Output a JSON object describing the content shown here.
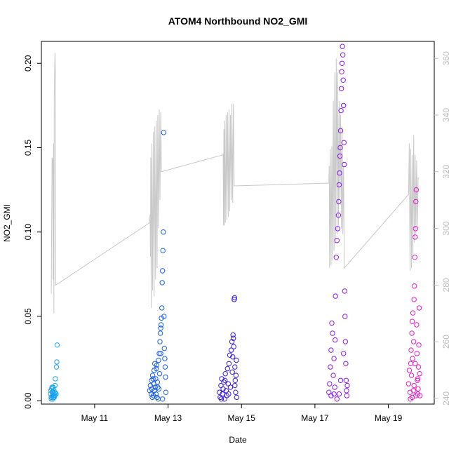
{
  "chart_data": {
    "type": "scatter",
    "title": "ATOM4 Northbound NO2_GMI",
    "xlabel": "Date",
    "ylabel": "NO2_GMI",
    "xlim": [
      9.55,
      20.25
    ],
    "ylim": [
      -0.002,
      0.213
    ],
    "y2lim": [
      238,
      366
    ],
    "x_ticks": [
      {
        "value": 11,
        "label": "May 11"
      },
      {
        "value": 13,
        "label": "May 13"
      },
      {
        "value": 15,
        "label": "May 15"
      },
      {
        "value": 17,
        "label": "May 17"
      },
      {
        "value": 19,
        "label": "May 19"
      }
    ],
    "y_ticks": [
      {
        "value": 0.0,
        "label": "0.00"
      },
      {
        "value": 0.05,
        "label": "0.05"
      },
      {
        "value": 0.1,
        "label": "0.10"
      },
      {
        "value": 0.15,
        "label": "0.15"
      },
      {
        "value": 0.2,
        "label": "0.20"
      }
    ],
    "y2_ticks": [
      {
        "value": 240,
        "label": "240"
      },
      {
        "value": 260,
        "label": "260"
      },
      {
        "value": 280,
        "label": "280"
      },
      {
        "value": 300,
        "label": "300"
      },
      {
        "value": 320,
        "label": "320"
      },
      {
        "value": 340,
        "label": "340"
      },
      {
        "value": 360,
        "label": "360"
      }
    ],
    "grid": false,
    "marker_colors": [
      "#1aa3f5",
      "#1a5fe6",
      "#3a1ae0",
      "#8a1ae8",
      "#e81ac8"
    ],
    "line_color": "#c8c8c8",
    "secondary_line": [
      [
        9.82,
        277
      ],
      [
        9.84,
        325
      ],
      [
        9.86,
        324
      ],
      [
        9.87,
        282
      ],
      [
        9.88,
        330
      ],
      [
        9.89,
        270
      ],
      [
        9.9,
        345
      ],
      [
        9.91,
        355
      ],
      [
        9.92,
        362
      ],
      [
        9.93,
        355
      ],
      [
        9.94,
        280
      ],
      [
        12.5,
        302
      ],
      [
        12.51,
        305
      ],
      [
        12.52,
        290
      ],
      [
        12.53,
        325
      ],
      [
        12.54,
        272
      ],
      [
        12.56,
        330
      ],
      [
        12.58,
        278
      ],
      [
        12.6,
        334
      ],
      [
        12.62,
        276
      ],
      [
        12.64,
        336
      ],
      [
        12.66,
        282
      ],
      [
        12.68,
        338
      ],
      [
        12.7,
        286
      ],
      [
        12.72,
        340
      ],
      [
        12.74,
        300
      ],
      [
        12.76,
        342
      ],
      [
        12.78,
        310
      ],
      [
        12.8,
        341
      ],
      [
        12.82,
        320
      ],
      [
        14.5,
        326
      ],
      [
        14.51,
        301
      ],
      [
        14.52,
        335
      ],
      [
        14.53,
        301
      ],
      [
        14.54,
        338
      ],
      [
        14.56,
        302
      ],
      [
        14.58,
        340
      ],
      [
        14.6,
        303
      ],
      [
        14.62,
        341
      ],
      [
        14.64,
        304
      ],
      [
        14.66,
        342
      ],
      [
        14.68,
        306
      ],
      [
        14.7,
        340
      ],
      [
        14.72,
        310
      ],
      [
        14.74,
        344
      ],
      [
        14.76,
        309
      ],
      [
        14.78,
        344
      ],
      [
        14.8,
        315
      ],
      [
        17.38,
        316
      ],
      [
        17.39,
        322
      ],
      [
        17.4,
        286
      ],
      [
        17.42,
        328
      ],
      [
        17.44,
        287
      ],
      [
        17.46,
        329
      ],
      [
        17.48,
        289
      ],
      [
        17.5,
        345
      ],
      [
        17.52,
        292
      ],
      [
        17.54,
        355
      ],
      [
        17.56,
        296
      ],
      [
        17.58,
        360
      ],
      [
        17.6,
        298
      ],
      [
        17.62,
        355
      ],
      [
        17.64,
        301
      ],
      [
        17.66,
        345
      ],
      [
        17.68,
        310
      ],
      [
        17.7,
        340
      ],
      [
        17.72,
        300
      ],
      [
        17.74,
        336
      ],
      [
        17.76,
        298
      ],
      [
        17.78,
        322
      ],
      [
        17.8,
        286
      ],
      [
        19.55,
        312
      ],
      [
        19.57,
        330
      ],
      [
        19.59,
        285
      ],
      [
        19.61,
        328
      ],
      [
        19.63,
        286
      ],
      [
        19.65,
        326
      ],
      [
        19.67,
        290
      ],
      [
        19.69,
        333
      ],
      [
        19.71,
        295
      ],
      [
        19.73,
        326
      ],
      [
        19.75,
        298
      ],
      [
        19.77,
        324
      ],
      [
        19.79,
        300
      ],
      [
        19.81,
        318
      ]
    ],
    "series": [
      {
        "values": [
          [
            9.8,
            0.004
          ],
          [
            9.81,
            0.006
          ],
          [
            9.82,
            0.002
          ],
          [
            9.83,
            0.007
          ],
          [
            9.84,
            0.003
          ],
          [
            9.85,
            0.005
          ],
          [
            9.86,
            0.001
          ],
          [
            9.87,
            0.008
          ],
          [
            9.88,
            0.002
          ],
          [
            9.89,
            0.006
          ],
          [
            9.9,
            0.004
          ],
          [
            9.91,
            0.003
          ],
          [
            9.92,
            0.009
          ],
          [
            9.93,
            0.013
          ],
          [
            9.94,
            0.004
          ],
          [
            9.95,
            0.004
          ],
          [
            9.96,
            0.02
          ],
          [
            9.97,
            0.023
          ],
          [
            9.98,
            0.033
          ],
          [
            9.82,
            0.001
          ],
          [
            9.84,
            0.008
          ],
          [
            9.86,
            0.005
          ],
          [
            9.88,
            0.003
          ],
          [
            9.9,
            0.002
          ],
          [
            9.92,
            0.005
          ]
        ]
      },
      {
        "values": [
          [
            12.5,
            0.006
          ],
          [
            12.52,
            0.009
          ],
          [
            12.54,
            0.004
          ],
          [
            12.55,
            0.012
          ],
          [
            12.56,
            0.007
          ],
          [
            12.58,
            0.015
          ],
          [
            12.6,
            0.003
          ],
          [
            12.61,
            0.01
          ],
          [
            12.62,
            0.018
          ],
          [
            12.63,
            0.006
          ],
          [
            12.64,
            0.022
          ],
          [
            12.65,
            0.008
          ],
          [
            12.66,
            0.013
          ],
          [
            12.67,
            0.004
          ],
          [
            12.68,
            0.019
          ],
          [
            12.7,
            0.002
          ],
          [
            12.71,
            0.011
          ],
          [
            12.72,
            0.008
          ],
          [
            12.73,
            0.001
          ],
          [
            12.74,
            0.024
          ],
          [
            12.75,
            0.007
          ],
          [
            12.76,
            0.028
          ],
          [
            12.77,
            0.016
          ],
          [
            12.78,
            0.035
          ],
          [
            12.79,
            0.04
          ],
          [
            12.8,
            0.043
          ],
          [
            12.81,
            0.045
          ],
          [
            12.82,
            0.049
          ],
          [
            12.83,
            0.055
          ],
          [
            12.84,
            0.07
          ],
          [
            12.85,
            0.077
          ],
          [
            12.86,
            0.089
          ],
          [
            12.87,
            0.1
          ],
          [
            12.88,
            0.159
          ],
          [
            12.89,
            0.05
          ],
          [
            12.9,
            0.031
          ],
          [
            12.91,
            0.025
          ],
          [
            12.92,
            0.02
          ],
          [
            12.93,
            0.014
          ],
          [
            12.94,
            0.005
          ],
          [
            12.57,
            0.002
          ],
          [
            12.59,
            0.013
          ],
          [
            12.69,
            0.021
          ],
          [
            12.8,
            0.028
          ],
          [
            12.85,
            0.001
          ]
        ]
      },
      {
        "values": [
          [
            14.4,
            0.005
          ],
          [
            14.42,
            0.002
          ],
          [
            14.44,
            0.009
          ],
          [
            14.46,
            0.013
          ],
          [
            14.48,
            0.004
          ],
          [
            14.5,
            0.007
          ],
          [
            14.52,
            0.011
          ],
          [
            14.54,
            0.001
          ],
          [
            14.56,
            0.016
          ],
          [
            14.58,
            0.006
          ],
          [
            14.6,
            0.003
          ],
          [
            14.62,
            0.019
          ],
          [
            14.64,
            0.01
          ],
          [
            14.66,
            0.022
          ],
          [
            14.68,
            0.027
          ],
          [
            14.7,
            0.008
          ],
          [
            14.72,
            0.03
          ],
          [
            14.74,
            0.035
          ],
          [
            14.76,
            0.026
          ],
          [
            14.77,
            0.039
          ],
          [
            14.78,
            0.037
          ],
          [
            14.79,
            0.032
          ],
          [
            14.8,
            0.06
          ],
          [
            14.81,
            0.061
          ],
          [
            14.82,
            0.02
          ],
          [
            14.83,
            0.012
          ],
          [
            14.84,
            0.005
          ],
          [
            14.85,
            0.015
          ],
          [
            14.86,
            0.024
          ],
          [
            14.87,
            0.002
          ],
          [
            14.45,
            0.001
          ],
          [
            14.55,
            0.012
          ],
          [
            14.65,
            0.004
          ],
          [
            14.75,
            0.017
          ],
          [
            14.82,
            0.009
          ]
        ]
      },
      {
        "values": [
          [
            17.38,
            0.005
          ],
          [
            17.4,
            0.01
          ],
          [
            17.42,
            0.02
          ],
          [
            17.44,
            0.03
          ],
          [
            17.46,
            0.046
          ],
          [
            17.48,
            0.04
          ],
          [
            17.5,
            0.015
          ],
          [
            17.52,
            0.025
          ],
          [
            17.54,
            0.008
          ],
          [
            17.56,
            0.062
          ],
          [
            17.58,
            0.085
          ],
          [
            17.6,
            0.095
          ],
          [
            17.62,
            0.102
          ],
          [
            17.64,
            0.11
          ],
          [
            17.65,
            0.118
          ],
          [
            17.66,
            0.128
          ],
          [
            17.67,
            0.135
          ],
          [
            17.68,
            0.145
          ],
          [
            17.69,
            0.15
          ],
          [
            17.7,
            0.16
          ],
          [
            17.71,
            0.172
          ],
          [
            17.72,
            0.185
          ],
          [
            17.73,
            0.195
          ],
          [
            17.74,
            0.2
          ],
          [
            17.75,
            0.21
          ],
          [
            17.76,
            0.205
          ],
          [
            17.77,
            0.19
          ],
          [
            17.78,
            0.175
          ],
          [
            17.79,
            0.153
          ],
          [
            17.8,
            0.14
          ],
          [
            17.81,
            0.065
          ],
          [
            17.82,
            0.05
          ],
          [
            17.83,
            0.035
          ],
          [
            17.84,
            0.022
          ],
          [
            17.85,
            0.012
          ],
          [
            17.86,
            0.006
          ],
          [
            17.87,
            0.003
          ],
          [
            17.88,
            0.009
          ],
          [
            17.44,
            0.003
          ],
          [
            17.52,
            0.004
          ],
          [
            17.6,
            0.001
          ],
          [
            17.7,
            0.012
          ],
          [
            17.78,
            0.028
          ],
          [
            17.55,
            0.036
          ],
          [
            17.66,
            0.004
          ]
        ]
      },
      {
        "values": [
          [
            19.55,
            0.01
          ],
          [
            19.57,
            0.018
          ],
          [
            19.59,
            0.005
          ],
          [
            19.61,
            0.022
          ],
          [
            19.62,
            0.03
          ],
          [
            19.63,
            0.015
          ],
          [
            19.64,
            0.04
          ],
          [
            19.65,
            0.002
          ],
          [
            19.66,
            0.025
          ],
          [
            19.67,
            0.052
          ],
          [
            19.68,
            0.006
          ],
          [
            19.69,
            0.035
          ],
          [
            19.7,
            0.06
          ],
          [
            19.71,
            0.068
          ],
          [
            19.72,
            0.085
          ],
          [
            19.73,
            0.097
          ],
          [
            19.74,
            0.102
          ],
          [
            19.75,
            0.118
          ],
          [
            19.76,
            0.125
          ],
          [
            19.77,
            0.045
          ],
          [
            19.78,
            0.028
          ],
          [
            19.79,
            0.012
          ],
          [
            19.8,
            0.004
          ],
          [
            19.81,
            0.007
          ],
          [
            19.82,
            0.02
          ],
          [
            19.83,
            0.033
          ],
          [
            19.84,
            0.055
          ],
          [
            19.85,
            0.016
          ],
          [
            19.86,
            0.003
          ],
          [
            19.6,
            0.001
          ],
          [
            19.7,
            0.009
          ],
          [
            19.75,
            0.003
          ],
          [
            19.8,
            0.013
          ],
          [
            19.65,
            0.047
          ],
          [
            19.73,
            0.022
          ]
        ]
      }
    ]
  }
}
